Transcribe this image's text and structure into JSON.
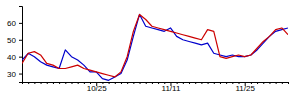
{
  "chart_data": {
    "type": "line",
    "categories": [
      null,
      null,
      null,
      null,
      null,
      null,
      null,
      null,
      null,
      null,
      null,
      null,
      "10/25",
      null,
      null,
      null,
      null,
      null,
      null,
      null,
      null,
      null,
      null,
      null,
      "11/11",
      null,
      null,
      null,
      null,
      null,
      null,
      null,
      null,
      null,
      null,
      null,
      "11/25",
      null,
      null,
      null,
      null,
      null,
      null,
      null
    ],
    "series": [
      {
        "color": "#0000cc",
        "values": [
          38,
          42,
          40,
          37,
          35,
          34,
          33,
          44,
          40,
          38,
          35,
          31,
          31,
          27,
          26,
          28,
          30,
          38,
          52,
          65,
          58,
          57,
          56,
          55,
          57,
          52,
          50,
          49,
          48,
          47,
          48,
          42,
          41,
          40,
          41,
          40,
          40,
          41,
          44,
          48,
          52,
          55,
          56,
          57
        ]
      },
      {
        "color": "#cc0000",
        "values": [
          36,
          42,
          43,
          41,
          36,
          35,
          33,
          33,
          34,
          35,
          33,
          32,
          31,
          30,
          29,
          28,
          31,
          40,
          55,
          65,
          62,
          58,
          57,
          56,
          55,
          54,
          53,
          52,
          51,
          50,
          56,
          55,
          40,
          39,
          40,
          41,
          40,
          41,
          45,
          49,
          52,
          56,
          57,
          53
        ]
      }
    ],
    "ylim": [
      25,
      70
    ],
    "yticks": [
      30,
      40,
      50,
      60
    ]
  }
}
